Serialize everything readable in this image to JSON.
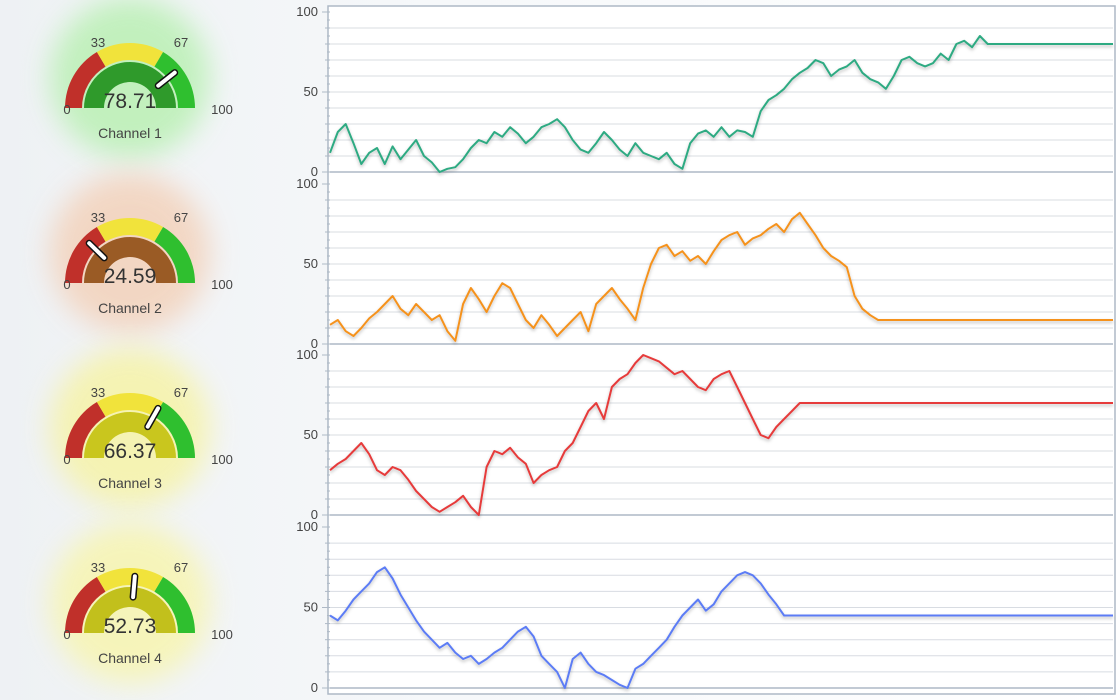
{
  "palette": {
    "zone_red": "#c0302a",
    "zone_yellow": "#f1e33b",
    "zone_green": "#2fbf2f",
    "needle": "#ffffff",
    "grid": "#d8dce2",
    "axis": "#aeb9c6"
  },
  "gauges": [
    {
      "label": "Channel 1",
      "value": 78.71,
      "display": "78.71",
      "fill": "#2f9a2b",
      "glow": "#baf0b4",
      "tick_min": "0",
      "tick_33": "33",
      "tick_67": "67",
      "tick_max": "100"
    },
    {
      "label": "Channel 2",
      "value": 24.59,
      "display": "24.59",
      "fill": "#9a5b25",
      "glow": "#f3d2bb",
      "tick_min": "0",
      "tick_33": "33",
      "tick_67": "67",
      "tick_max": "100"
    },
    {
      "label": "Channel 3",
      "value": 66.37,
      "display": "66.37",
      "fill": "#c9c61e",
      "glow": "#f6f3a8",
      "tick_min": "0",
      "tick_33": "33",
      "tick_67": "67",
      "tick_max": "100"
    },
    {
      "label": "Channel 4",
      "value": 52.73,
      "display": "52.73",
      "fill": "#c2c01c",
      "glow": "#f7f5b0",
      "tick_min": "0",
      "tick_33": "33",
      "tick_67": "67",
      "tick_max": "100"
    }
  ],
  "chart_data": [
    {
      "type": "line",
      "name": "Channel 1",
      "color": "#2daa82",
      "ylim": [
        0,
        100
      ],
      "yticks": [
        0,
        50,
        100
      ],
      "ytick_labels": [
        "0",
        "50",
        "100"
      ],
      "x": [
        0,
        10,
        20,
        30,
        40,
        50,
        60,
        70,
        80,
        90,
        100,
        110,
        120,
        130,
        140,
        150,
        160,
        170,
        180,
        190,
        200,
        210,
        220,
        230,
        240,
        250,
        260,
        270,
        280,
        290,
        300,
        310,
        320,
        330,
        340,
        350,
        360,
        370,
        380,
        390,
        400,
        410,
        420,
        430,
        440,
        450,
        460,
        470,
        480,
        490,
        500,
        510,
        520,
        530,
        540,
        550,
        560,
        570,
        580,
        590,
        600,
        610,
        620,
        630,
        640,
        650,
        660,
        670,
        680,
        690,
        700,
        710,
        720,
        730,
        740,
        750,
        760,
        770,
        780,
        790,
        800,
        810,
        820,
        830,
        840,
        850,
        860,
        870,
        880,
        890,
        900,
        910,
        920,
        930,
        940,
        950,
        960,
        970,
        980,
        990,
        1000
      ],
      "values": [
        12,
        25,
        30,
        18,
        5,
        12,
        15,
        5,
        16,
        8,
        14,
        20,
        10,
        6,
        0,
        2,
        3,
        8,
        15,
        20,
        18,
        25,
        22,
        28,
        24,
        18,
        22,
        28,
        30,
        33,
        28,
        20,
        14,
        12,
        18,
        25,
        20,
        14,
        10,
        18,
        12,
        10,
        8,
        12,
        5,
        2,
        18,
        24,
        26,
        22,
        28,
        22,
        26,
        25,
        22,
        38,
        45,
        48,
        52,
        58,
        62,
        65,
        70,
        68,
        60,
        64,
        66,
        70,
        62,
        58,
        56,
        52,
        60,
        70,
        72,
        68,
        66,
        68,
        74,
        70,
        80,
        82,
        78,
        85,
        80,
        80,
        80,
        80,
        80,
        80,
        80,
        80,
        80,
        80,
        80,
        80,
        80,
        80,
        80,
        80,
        80
      ]
    },
    {
      "type": "line",
      "name": "Channel 2",
      "color": "#f5921f",
      "ylim": [
        0,
        100
      ],
      "yticks": [
        0,
        50,
        100
      ],
      "ytick_labels": [
        "0",
        "50",
        "100"
      ],
      "x": [
        0,
        10,
        20,
        30,
        40,
        50,
        60,
        70,
        80,
        90,
        100,
        110,
        120,
        130,
        140,
        150,
        160,
        170,
        180,
        190,
        200,
        210,
        220,
        230,
        240,
        250,
        260,
        270,
        280,
        290,
        300,
        310,
        320,
        330,
        340,
        350,
        360,
        370,
        380,
        390,
        400,
        410,
        420,
        430,
        440,
        450,
        460,
        470,
        480,
        490,
        500,
        510,
        520,
        530,
        540,
        550,
        560,
        570,
        580,
        590,
        600,
        610,
        620,
        630,
        640,
        650,
        660,
        670,
        680,
        690,
        700,
        710,
        720,
        730,
        740,
        750,
        760,
        770,
        780,
        790,
        800,
        810,
        820,
        830,
        840,
        850,
        860,
        870,
        880,
        890,
        900,
        910,
        920,
        930,
        940,
        950,
        960,
        970,
        980,
        990,
        1000
      ],
      "values": [
        12,
        15,
        8,
        5,
        10,
        16,
        20,
        25,
        30,
        22,
        18,
        25,
        20,
        15,
        18,
        8,
        2,
        25,
        35,
        28,
        20,
        30,
        38,
        35,
        25,
        15,
        10,
        18,
        12,
        5,
        10,
        15,
        20,
        8,
        25,
        30,
        35,
        28,
        22,
        15,
        35,
        50,
        60,
        62,
        55,
        58,
        52,
        55,
        50,
        58,
        65,
        68,
        70,
        62,
        66,
        68,
        72,
        75,
        70,
        78,
        82,
        75,
        68,
        60,
        55,
        52,
        48,
        30,
        22,
        18,
        15,
        15,
        15,
        15,
        15,
        15,
        15,
        15,
        15,
        15,
        15,
        15,
        15,
        15,
        15,
        15,
        15,
        15,
        15,
        15,
        15,
        15,
        15,
        15,
        15,
        15,
        15,
        15,
        15,
        15,
        15
      ]
    },
    {
      "type": "line",
      "name": "Channel 3",
      "color": "#e63a3a",
      "ylim": [
        0,
        100
      ],
      "yticks": [
        0,
        50,
        100
      ],
      "ytick_labels": [
        "0",
        "50",
        "100"
      ],
      "x": [
        0,
        10,
        20,
        30,
        40,
        50,
        60,
        70,
        80,
        90,
        100,
        110,
        120,
        130,
        140,
        150,
        160,
        170,
        180,
        190,
        200,
        210,
        220,
        230,
        240,
        250,
        260,
        270,
        280,
        290,
        300,
        310,
        320,
        330,
        340,
        350,
        360,
        370,
        380,
        390,
        400,
        410,
        420,
        430,
        440,
        450,
        460,
        470,
        480,
        490,
        500,
        510,
        520,
        530,
        540,
        550,
        560,
        570,
        580,
        590,
        600,
        610,
        620,
        630,
        640,
        650,
        660,
        670,
        680,
        690,
        700,
        710,
        720,
        730,
        740,
        750,
        760,
        770,
        780,
        790,
        800,
        810,
        820,
        830,
        840,
        850,
        860,
        870,
        880,
        890,
        900,
        910,
        920,
        930,
        940,
        950,
        960,
        970,
        980,
        990,
        1000
      ],
      "values": [
        28,
        32,
        35,
        40,
        45,
        38,
        28,
        25,
        30,
        28,
        22,
        15,
        10,
        5,
        2,
        5,
        8,
        12,
        5,
        0,
        30,
        40,
        38,
        42,
        36,
        32,
        20,
        25,
        28,
        30,
        40,
        45,
        55,
        65,
        70,
        60,
        80,
        85,
        88,
        95,
        100,
        98,
        96,
        92,
        88,
        90,
        85,
        80,
        78,
        85,
        88,
        90,
        80,
        70,
        60,
        50,
        48,
        55,
        60,
        65,
        70,
        70,
        70,
        70,
        70,
        70,
        70,
        70,
        70,
        70,
        70,
        70,
        70,
        70,
        70,
        70,
        70,
        70,
        70,
        70,
        70,
        70,
        70,
        70,
        70,
        70,
        70,
        70,
        70,
        70,
        70,
        70,
        70,
        70,
        70,
        70,
        70,
        70,
        70,
        70,
        70
      ]
    },
    {
      "type": "line",
      "name": "Channel 4",
      "color": "#5b7cf5",
      "ylim": [
        0,
        100
      ],
      "yticks": [
        0,
        50,
        100
      ],
      "ytick_labels": [
        "0",
        "50",
        "100"
      ],
      "x": [
        0,
        10,
        20,
        30,
        40,
        50,
        60,
        70,
        80,
        90,
        100,
        110,
        120,
        130,
        140,
        150,
        160,
        170,
        180,
        190,
        200,
        210,
        220,
        230,
        240,
        250,
        260,
        270,
        280,
        290,
        300,
        310,
        320,
        330,
        340,
        350,
        360,
        370,
        380,
        390,
        400,
        410,
        420,
        430,
        440,
        450,
        460,
        470,
        480,
        490,
        500,
        510,
        520,
        530,
        540,
        550,
        560,
        570,
        580,
        590,
        600,
        610,
        620,
        630,
        640,
        650,
        660,
        670,
        680,
        690,
        700,
        710,
        720,
        730,
        740,
        750,
        760,
        770,
        780,
        790,
        800,
        810,
        820,
        830,
        840,
        850,
        860,
        870,
        880,
        890,
        900,
        910,
        920,
        930,
        940,
        950,
        960,
        970,
        980,
        990,
        1000
      ],
      "values": [
        45,
        42,
        48,
        55,
        60,
        65,
        72,
        75,
        68,
        58,
        50,
        42,
        35,
        30,
        25,
        28,
        22,
        18,
        20,
        15,
        18,
        22,
        25,
        30,
        35,
        38,
        32,
        20,
        15,
        10,
        0,
        18,
        22,
        15,
        10,
        8,
        5,
        2,
        0,
        12,
        15,
        20,
        25,
        30,
        38,
        45,
        50,
        55,
        48,
        52,
        60,
        65,
        70,
        72,
        70,
        65,
        58,
        52,
        45,
        45,
        45,
        45,
        45,
        45,
        45,
        45,
        45,
        45,
        45,
        45,
        45,
        45,
        45,
        45,
        45,
        45,
        45,
        45,
        45,
        45,
        45,
        45,
        45,
        45,
        45,
        45,
        45,
        45,
        45,
        45,
        45,
        45,
        45,
        45,
        45,
        45,
        45,
        45,
        45,
        45,
        45
      ]
    }
  ]
}
